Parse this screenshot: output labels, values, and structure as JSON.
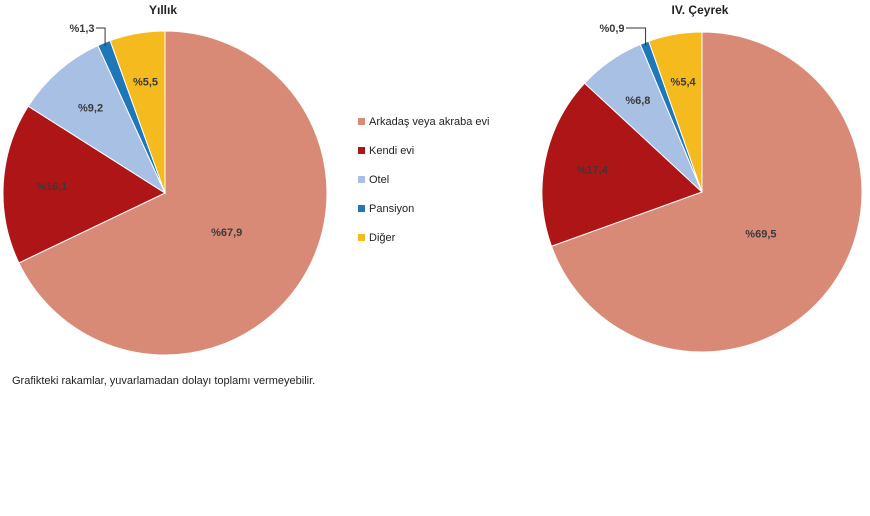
{
  "chart_data": [
    {
      "type": "pie",
      "title": "Yıllık",
      "categories": [
        "Arkadaş veya akraba evi",
        "Kendi evi",
        "Otel",
        "Pansiyon",
        "Diğer"
      ],
      "values": [
        67.9,
        16.1,
        9.2,
        1.3,
        5.5
      ],
      "labels": [
        "%67,9",
        "%16,1",
        "%9,2",
        "%1,3",
        "%5,5"
      ]
    },
    {
      "type": "pie",
      "title": "IV. Çeyrek",
      "categories": [
        "Arkadaş veya akraba evi",
        "Kendi evi",
        "Otel",
        "Pansiyon",
        "Diğer"
      ],
      "values": [
        69.5,
        17.4,
        6.8,
        0.9,
        5.4
      ],
      "labels": [
        "%69,5",
        "%17,4",
        "%6,8",
        "%0,9",
        "%5,4"
      ]
    }
  ],
  "legend": {
    "placement": "center",
    "items": [
      {
        "label": "Arkadaş veya akraba evi",
        "color": "#D98A77"
      },
      {
        "label": "Kendi evi",
        "color": "#AE1517"
      },
      {
        "label": "Otel",
        "color": "#A8C0E4"
      },
      {
        "label": "Pansiyon",
        "color": "#1E77B8"
      },
      {
        "label": "Diğer",
        "color": "#F5BB1E"
      }
    ]
  },
  "footnote": "Grafikteki rakamlar, yuvarlamadan dolayı toplamı vermeyebilir."
}
